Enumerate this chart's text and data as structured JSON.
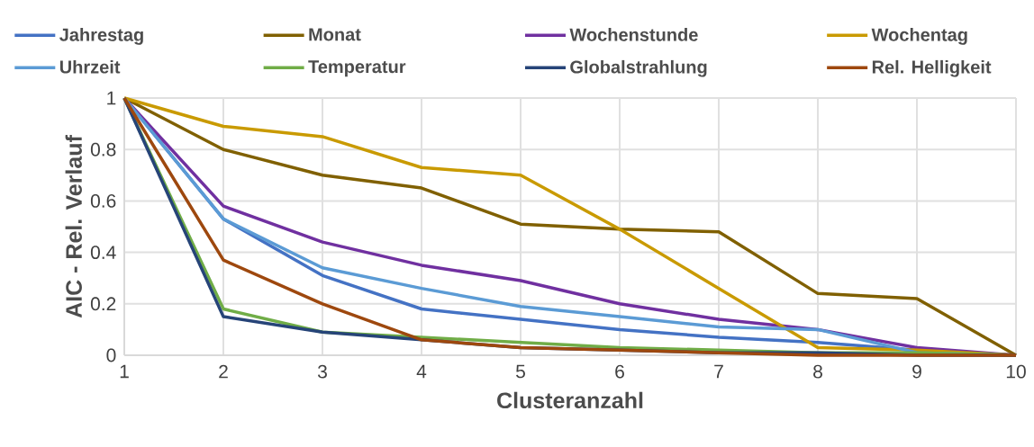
{
  "chart_data": {
    "type": "line",
    "xlabel": "Clusteranzahl",
    "ylabel": "AIC - Rel. Verlauf",
    "x": [
      1,
      2,
      3,
      4,
      5,
      6,
      7,
      8,
      9,
      10
    ],
    "series": [
      {
        "name": "Jahrestag",
        "color": "#4472c4",
        "values": [
          1,
          0.53,
          0.31,
          0.18,
          0.14,
          0.1,
          0.07,
          0.05,
          0.02,
          0
        ]
      },
      {
        "name": "Monat",
        "color": "#806000",
        "values": [
          1,
          0.8,
          0.7,
          0.65,
          0.51,
          0.49,
          0.48,
          0.24,
          0.22,
          0
        ]
      },
      {
        "name": "Wochenstunde",
        "color": "#7030a0",
        "values": [
          1,
          0.58,
          0.44,
          0.35,
          0.29,
          0.2,
          0.14,
          0.1,
          0.03,
          0
        ]
      },
      {
        "name": "Wochentag",
        "color": "#c99a00",
        "values": [
          1,
          0.89,
          0.85,
          0.73,
          0.7,
          0.49,
          0.26,
          0.03,
          0.02,
          0
        ]
      },
      {
        "name": "Uhrzeit",
        "color": "#5b9bd5",
        "values": [
          1,
          0.53,
          0.34,
          0.26,
          0.19,
          0.15,
          0.11,
          0.1,
          0.01,
          0
        ]
      },
      {
        "name": "Temperatur",
        "color": "#70ad47",
        "values": [
          1,
          0.18,
          0.09,
          0.07,
          0.05,
          0.03,
          0.02,
          0.01,
          0.01,
          0
        ]
      },
      {
        "name": "Globalstrahlung",
        "color": "#264478",
        "values": [
          1,
          0.15,
          0.09,
          0.06,
          0.03,
          0.02,
          0.01,
          0.01,
          0,
          0
        ]
      },
      {
        "name": "Rel. Helligkeit",
        "color": "#9e480e",
        "values": [
          1,
          0.37,
          0.2,
          0.06,
          0.03,
          0.02,
          0.01,
          0,
          0,
          0
        ]
      }
    ],
    "xlim": [
      1,
      10
    ],
    "ylim": [
      0,
      1
    ],
    "xticks": [
      1,
      2,
      3,
      4,
      5,
      6,
      7,
      8,
      9,
      10
    ],
    "yticks": [
      0,
      0.2,
      0.4,
      0.6,
      0.8,
      1
    ],
    "grid": true,
    "legend": "top"
  }
}
